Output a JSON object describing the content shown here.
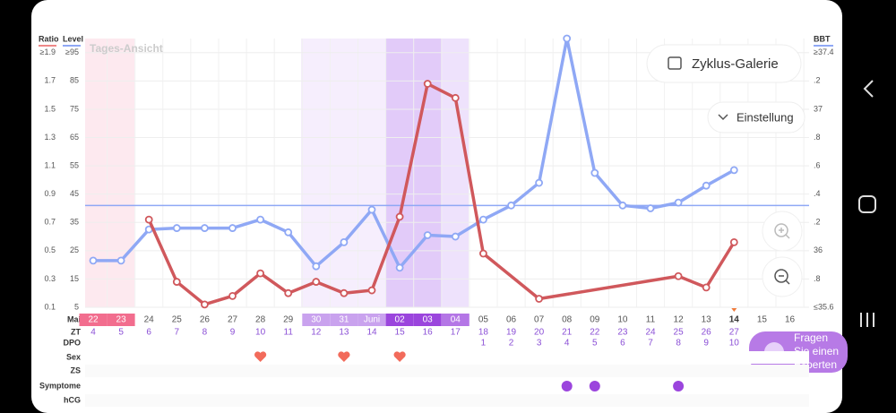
{
  "chart_data": {
    "type": "line",
    "view_label": "Tages-Ansicht",
    "buttons": {
      "gallery": "Zyklus-Galerie",
      "settings": "Einstellung",
      "expert": [
        "Fragen",
        "Sie einen",
        "Experten"
      ]
    },
    "left_axis_titles": [
      "Ratio",
      "Level"
    ],
    "right_axis_title": "BBT",
    "month_labels": [
      "Mai"
    ],
    "categories": [
      "22",
      "23",
      "24",
      "25",
      "26",
      "27",
      "28",
      "29",
      "30",
      "31",
      "Juni",
      "02",
      "03",
      "04",
      "05",
      "06",
      "07",
      "08",
      "09",
      "10",
      "11",
      "12",
      "13",
      "14",
      "15",
      "16"
    ],
    "today": "14",
    "zt": [
      4,
      5,
      6,
      7,
      8,
      9,
      10,
      11,
      12,
      13,
      14,
      15,
      16,
      17,
      18,
      19,
      20,
      21,
      22,
      23,
      24,
      25,
      26,
      27,
      null,
      null
    ],
    "dpo": [
      null,
      null,
      null,
      null,
      null,
      null,
      null,
      null,
      null,
      null,
      null,
      null,
      null,
      null,
      1,
      2,
      3,
      4,
      5,
      6,
      7,
      8,
      9,
      10,
      null,
      null
    ],
    "row_labels": [
      "ZT",
      "DPO",
      "Sex",
      "ZS",
      "Symptome",
      "hCG"
    ],
    "sex_days": [
      "28",
      "31",
      "02"
    ],
    "symptom_days": [
      "08",
      "09",
      "12"
    ],
    "ratio_ticks": [
      {
        "value": 1.9,
        "label": "≥1.9"
      },
      1.7,
      1.5,
      1.3,
      1.1,
      0.9,
      0.7,
      0.5,
      0.3,
      0.1
    ],
    "ratio_lim": [
      0.1,
      2.0
    ],
    "ylim": [
      5,
      100
    ],
    "yticks": [
      {
        "value": 95,
        "label": "≥95"
      },
      85,
      75,
      65,
      55,
      45,
      35,
      25,
      15,
      5
    ],
    "y2lim": [
      35.6,
      37.5
    ],
    "y2ticks": [
      {
        "value": 37.4,
        "label": "≥37.4"
      },
      {
        "value": 37.2,
        "label": ".2"
      },
      37,
      {
        "value": 36.8,
        "label": ".8"
      },
      {
        "value": 36.6,
        "label": ".6"
      },
      {
        "value": 36.4,
        "label": ".4"
      },
      {
        "value": 36.2,
        "label": ".2"
      },
      36,
      {
        "value": 35.8,
        "label": ".8"
      },
      {
        "value": 35.6,
        "label": "≤35.6"
      }
    ],
    "coverline": 36.32,
    "grid": true,
    "series": [
      {
        "name": "BBT",
        "color": "#8fa8f5",
        "axis": "y2",
        "x": [
          "22",
          "23",
          "24",
          "25",
          "26",
          "27",
          "28",
          "29",
          "30",
          "31",
          "Juni",
          "02",
          "03",
          "04",
          "05",
          "06",
          "07",
          "08",
          "09",
          "10",
          "11",
          "12",
          "13",
          "14"
        ],
        "values": [
          35.93,
          35.93,
          36.15,
          36.16,
          36.16,
          36.16,
          36.22,
          36.13,
          35.89,
          36.06,
          36.29,
          35.88,
          36.11,
          36.1,
          36.22,
          36.32,
          36.48,
          37.5,
          36.55,
          36.32,
          36.3,
          36.34,
          36.46,
          36.57
        ]
      },
      {
        "name": "Level",
        "color": "#d0585c",
        "x": [
          "24",
          "25",
          "26",
          "27",
          "28",
          "29",
          "30",
          "31",
          "Juni",
          "02",
          "03",
          "04",
          "05",
          "07",
          "12",
          "13",
          "14"
        ],
        "values": [
          36,
          14,
          6,
          9,
          17,
          10,
          14,
          10,
          11,
          37,
          84,
          79,
          24,
          8,
          16,
          12,
          28
        ]
      }
    ]
  }
}
